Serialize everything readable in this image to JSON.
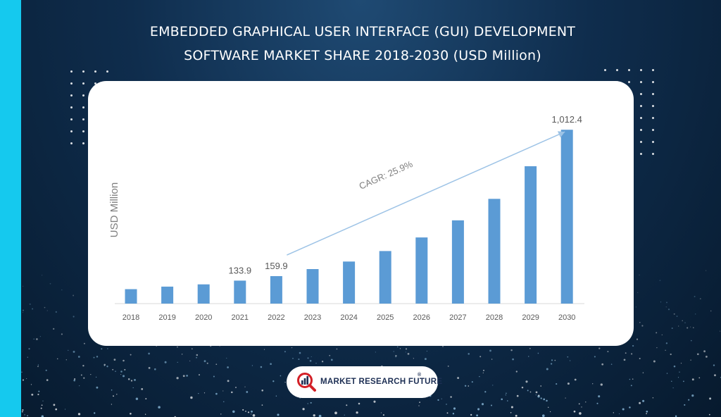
{
  "title_line1": "EMBEDDED GRAPHICAL USER INTERFACE (GUI) DEVELOPMENT",
  "title_line2": "SOFTWARE MARKET SHARE 2018-2030 (USD Million)",
  "brand": {
    "name": "MARKET RESEARCH FUTURE",
    "mark": "®",
    "logo_icon": "magnifier-bar-chart-icon",
    "colors": {
      "red": "#d32027",
      "navy": "#1d2f54"
    }
  },
  "colors": {
    "bar": "#5b9bd5",
    "arrow": "#9dc3e6",
    "accent_stripe": "#15c9ee",
    "card": "#ffffff"
  },
  "chart_data": {
    "type": "bar",
    "title": "EMBEDDED GRAPHICAL USER INTERFACE (GUI) DEVELOPMENT SOFTWARE MARKET SHARE 2018-2030 (USD Million)",
    "ylabel": "USD Million",
    "xlabel": "",
    "categories": [
      "2018",
      "2019",
      "2020",
      "2021",
      "2022",
      "2023",
      "2024",
      "2025",
      "2026",
      "2027",
      "2028",
      "2029",
      "2030"
    ],
    "values": [
      84,
      99,
      112,
      133.9,
      159.9,
      201,
      245,
      306,
      385,
      485,
      610,
      800,
      1012.4
    ],
    "data_labels": [
      {
        "category": "2021",
        "text": "133.9"
      },
      {
        "category": "2022",
        "text": "159.9"
      },
      {
        "category": "2030",
        "text": "1,012.4"
      }
    ],
    "annotation": {
      "text": "CAGR: 25.9%",
      "from": "2022",
      "to": "2030"
    },
    "ylim": [
      0,
      1050
    ],
    "grid": false,
    "legend": "none"
  }
}
